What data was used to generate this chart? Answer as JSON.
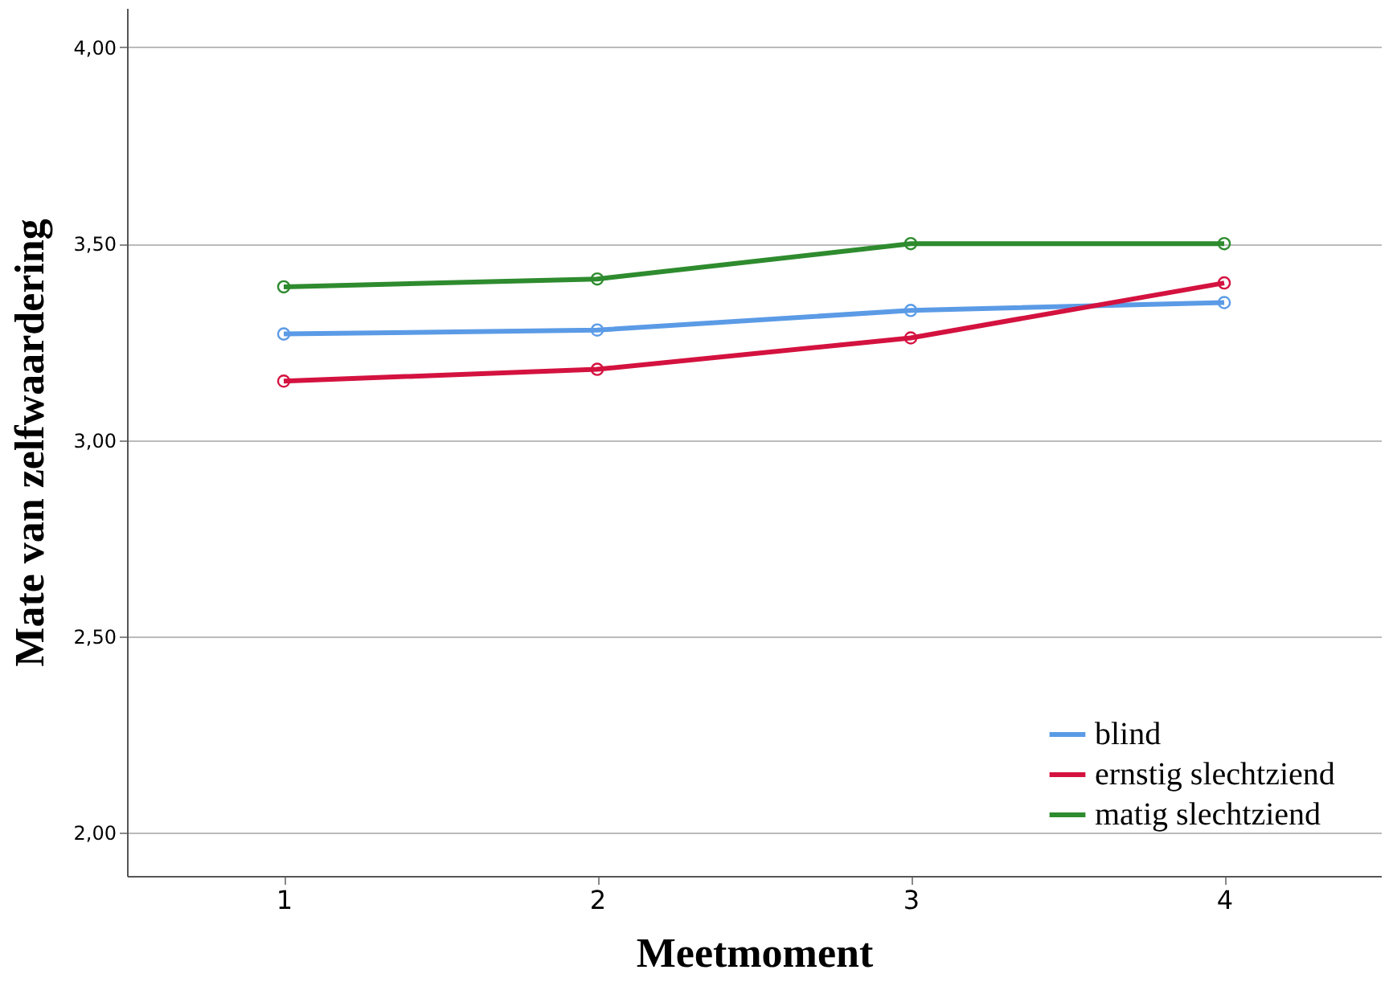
{
  "chart_data": {
    "type": "line",
    "xlabel": "Meetmoment",
    "ylabel": "Mate van zelfwaardering",
    "categories": [
      "1",
      "2",
      "3",
      "4"
    ],
    "series": [
      {
        "name": "blind",
        "color": "#5b9be6",
        "values": [
          3.27,
          3.28,
          3.33,
          3.35
        ]
      },
      {
        "name": "ernstig slechtziend",
        "color": "#d4123f",
        "values": [
          3.15,
          3.18,
          3.26,
          3.4
        ]
      },
      {
        "name": "matig slechtziend",
        "color": "#2e8b2e",
        "values": [
          3.39,
          3.41,
          3.5,
          3.5
        ]
      }
    ],
    "ylim": [
      1.89,
      4.1
    ],
    "yticks": [
      {
        "value": 2,
        "label": "2,00"
      },
      {
        "value": 2.5,
        "label": "2,50"
      },
      {
        "value": 3,
        "label": "3,00"
      },
      {
        "value": 3.5,
        "label": "3,50"
      },
      {
        "value": 4,
        "label": "4,00"
      }
    ],
    "grid": "y",
    "legend": "bottom right",
    "marker": "circle",
    "line_style": "solid"
  }
}
